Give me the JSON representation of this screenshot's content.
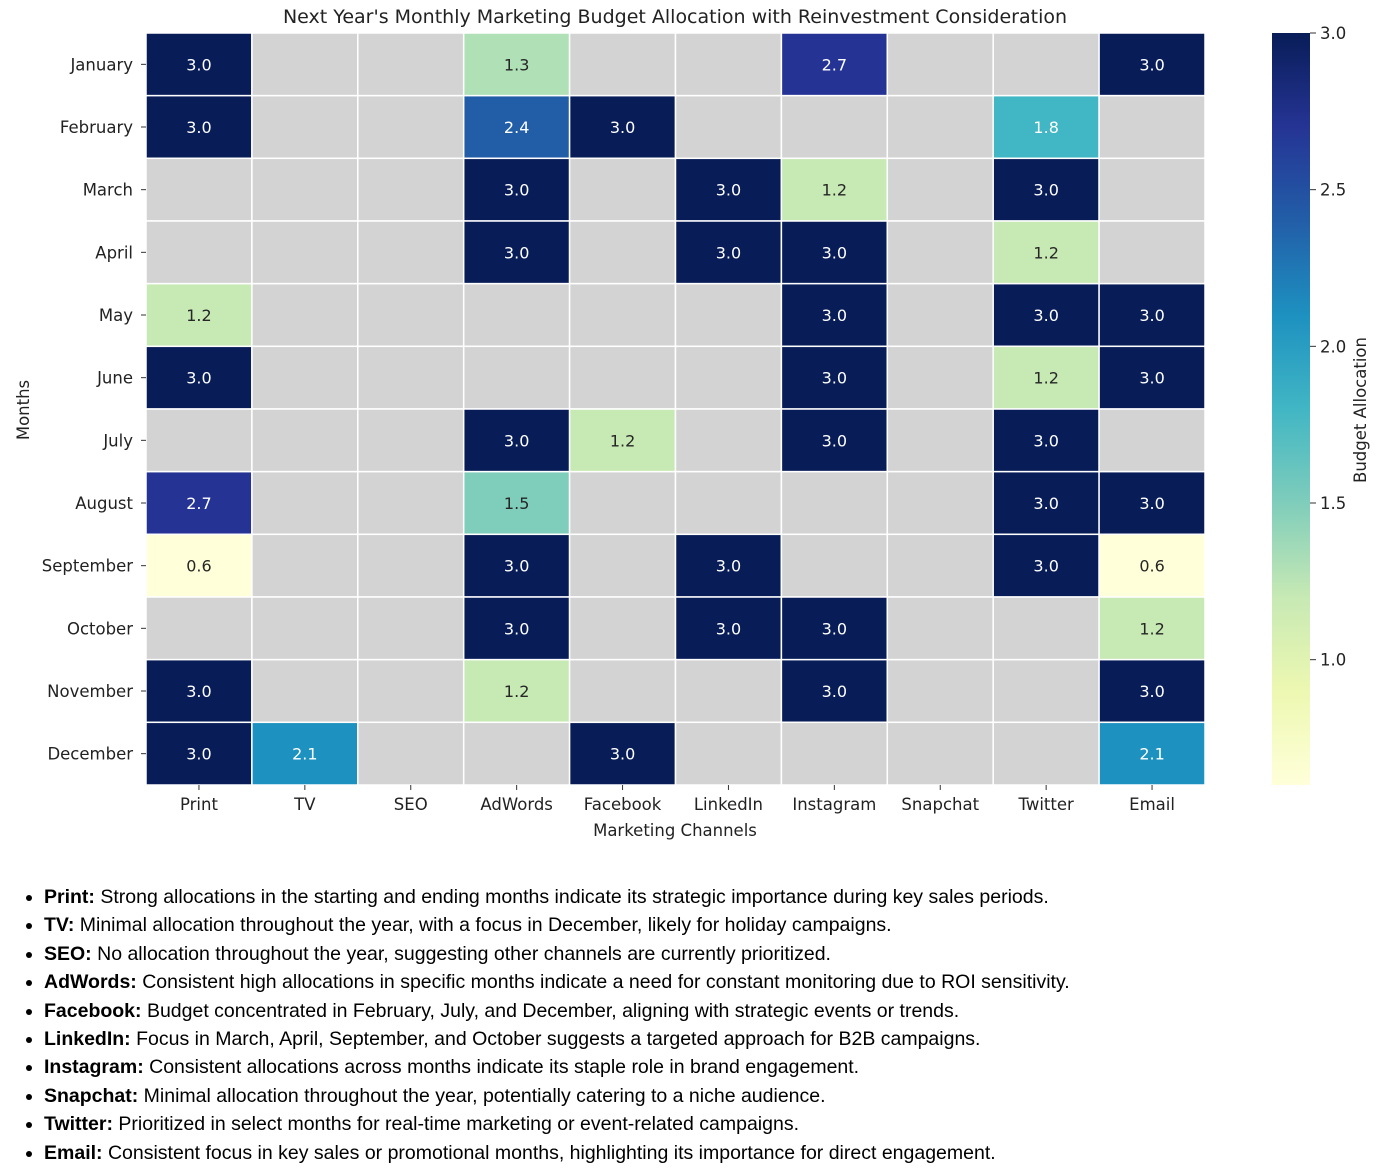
{
  "chart_data": {
    "type": "heatmap",
    "title": "Next Year's Monthly Marketing Budget Allocation with Reinvestment Consideration",
    "xlabel": "Marketing Channels",
    "ylabel": "Months",
    "colorbar_label": "Budget Allocation",
    "colormap": "YlGnBu",
    "missing_color": "#d3d3d3",
    "vmin": 0.6,
    "vmax": 3.0,
    "colorbar_ticks": [
      "1.0",
      "1.5",
      "2.0",
      "2.5",
      "3.0"
    ],
    "columns": [
      "Print",
      "TV",
      "SEO",
      "AdWords",
      "Facebook",
      "LinkedIn",
      "Instagram",
      "Snapchat",
      "Twitter",
      "Email"
    ],
    "rows": [
      "January",
      "February",
      "March",
      "April",
      "May",
      "June",
      "July",
      "August",
      "September",
      "October",
      "November",
      "December"
    ],
    "values": [
      [
        3.0,
        null,
        null,
        1.3,
        null,
        null,
        2.7,
        null,
        null,
        3.0
      ],
      [
        3.0,
        null,
        null,
        2.4,
        3.0,
        null,
        null,
        null,
        1.8,
        null
      ],
      [
        null,
        null,
        null,
        3.0,
        null,
        3.0,
        1.2,
        null,
        3.0,
        null
      ],
      [
        null,
        null,
        null,
        3.0,
        null,
        3.0,
        3.0,
        null,
        1.2,
        null
      ],
      [
        1.2,
        null,
        null,
        null,
        null,
        null,
        3.0,
        null,
        3.0,
        3.0
      ],
      [
        3.0,
        null,
        null,
        null,
        null,
        null,
        3.0,
        null,
        1.2,
        3.0
      ],
      [
        null,
        null,
        null,
        3.0,
        1.2,
        null,
        3.0,
        null,
        3.0,
        null
      ],
      [
        2.7,
        null,
        null,
        1.5,
        null,
        null,
        null,
        null,
        3.0,
        3.0
      ],
      [
        0.6,
        null,
        null,
        3.0,
        null,
        3.0,
        null,
        null,
        3.0,
        0.6
      ],
      [
        null,
        null,
        null,
        3.0,
        null,
        3.0,
        3.0,
        null,
        null,
        1.2
      ],
      [
        3.0,
        null,
        null,
        1.2,
        null,
        null,
        3.0,
        null,
        null,
        3.0
      ],
      [
        3.0,
        2.1,
        null,
        null,
        3.0,
        null,
        null,
        null,
        null,
        2.1
      ]
    ]
  },
  "notes": [
    {
      "term": "Print:",
      "text": " Strong allocations in the starting and ending months indicate its strategic importance during key sales periods."
    },
    {
      "term": "TV:",
      "text": " Minimal allocation throughout the year, with a focus in December, likely for holiday campaigns."
    },
    {
      "term": "SEO:",
      "text": " No allocation throughout the year, suggesting other channels are currently prioritized."
    },
    {
      "term": "AdWords:",
      "text": " Consistent high allocations in specific months indicate a need for constant monitoring due to ROI sensitivity."
    },
    {
      "term": "Facebook:",
      "text": " Budget concentrated in February, July, and December, aligning with strategic events or trends."
    },
    {
      "term": "LinkedIn:",
      "text": " Focus in March, April, September, and October suggests a targeted approach for B2B campaigns."
    },
    {
      "term": "Instagram:",
      "text": " Consistent allocations across months indicate its staple role in brand engagement."
    },
    {
      "term": "Snapchat:",
      "text": " Minimal allocation throughout the year, potentially catering to a niche audience."
    },
    {
      "term": "Twitter:",
      "text": " Prioritized in select months for real-time marketing or event-related campaigns."
    },
    {
      "term": "Email:",
      "text": " Consistent focus in key sales or promotional months, highlighting its importance for direct engagement."
    }
  ]
}
